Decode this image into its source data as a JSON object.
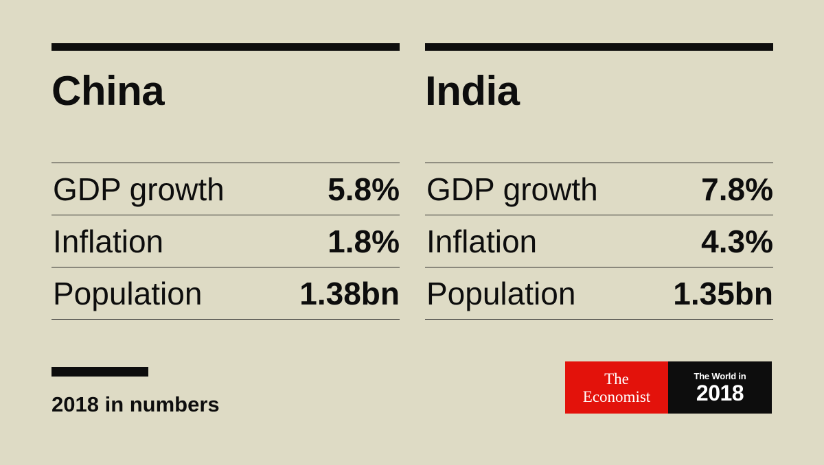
{
  "panels": [
    {
      "country": "China",
      "stats": [
        {
          "label": "GDP growth",
          "value": "5.8%"
        },
        {
          "label": "Inflation",
          "value": "1.8%"
        },
        {
          "label": "Population",
          "value": "1.38bn"
        }
      ]
    },
    {
      "country": "India",
      "stats": [
        {
          "label": "GDP growth",
          "value": "7.8%"
        },
        {
          "label": "Inflation",
          "value": "4.3%"
        },
        {
          "label": "Population",
          "value": "1.35bn"
        }
      ]
    }
  ],
  "footer": {
    "caption": "2018 in numbers"
  },
  "logo": {
    "the": "The",
    "economist": "Economist",
    "world_in": "The World in",
    "year": "2018"
  },
  "colors": {
    "background": "#dedbc5",
    "ink": "#0d0d0d",
    "economist_red": "#e3120b"
  }
}
